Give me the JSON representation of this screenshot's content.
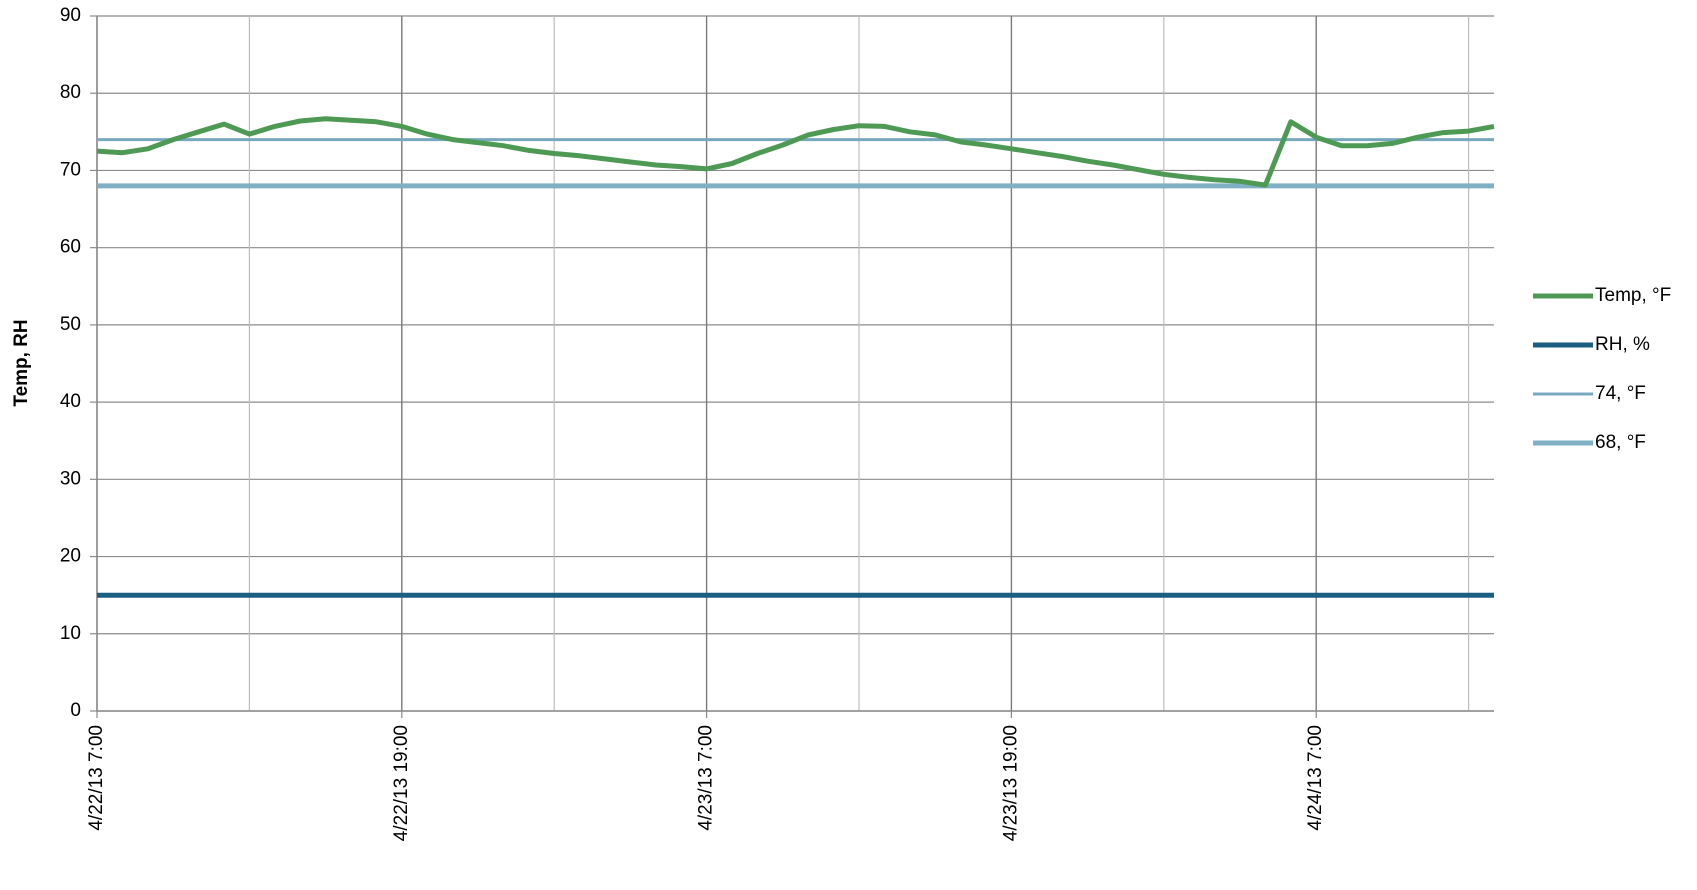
{
  "chart_data": {
    "type": "line",
    "y_label": "Temp, RH",
    "ylim": [
      0,
      90
    ],
    "yticks": [
      0,
      10,
      20,
      30,
      40,
      50,
      60,
      70,
      80,
      90
    ],
    "xlim": [
      "4/22/13 7:00",
      "4/24/13 14:00"
    ],
    "xticks": [
      "4/22/13 7:00",
      "4/22/13 19:00",
      "4/23/13 7:00",
      "4/23/13 19:00",
      "4/24/13 7:00"
    ],
    "grid": true,
    "legend": "right",
    "series": [
      {
        "name": "Temp, °F",
        "color": "#4e9a55",
        "width": 5,
        "x": [
          "4/22/13 7:00",
          "4/22/13 8:00",
          "4/22/13 9:00",
          "4/22/13 10:00",
          "4/22/13 11:00",
          "4/22/13 12:00",
          "4/22/13 13:00",
          "4/22/13 14:00",
          "4/22/13 15:00",
          "4/22/13 16:00",
          "4/22/13 17:00",
          "4/22/13 18:00",
          "4/22/13 19:00",
          "4/22/13 20:00",
          "4/22/13 21:00",
          "4/22/13 22:00",
          "4/22/13 23:00",
          "4/23/13 0:00",
          "4/23/13 1:00",
          "4/23/13 2:00",
          "4/23/13 3:00",
          "4/23/13 4:00",
          "4/23/13 5:00",
          "4/23/13 6:00",
          "4/23/13 7:00",
          "4/23/13 8:00",
          "4/23/13 9:00",
          "4/23/13 10:00",
          "4/23/13 11:00",
          "4/23/13 12:00",
          "4/23/13 13:00",
          "4/23/13 14:00",
          "4/23/13 15:00",
          "4/23/13 16:00",
          "4/23/13 17:00",
          "4/23/13 18:00",
          "4/23/13 19:00",
          "4/23/13 20:00",
          "4/23/13 21:00",
          "4/23/13 22:00",
          "4/23/13 23:00",
          "4/24/13 0:00",
          "4/24/13 1:00",
          "4/24/13 2:00",
          "4/24/13 3:00",
          "4/24/13 4:00",
          "4/24/13 5:00",
          "4/24/13 6:00",
          "4/24/13 7:00",
          "4/24/13 8:00",
          "4/24/13 9:00",
          "4/24/13 10:00",
          "4/24/13 11:00",
          "4/24/13 12:00",
          "4/24/13 13:00",
          "4/24/13 14:00"
        ],
        "values": [
          72.5,
          72.3,
          72.8,
          74,
          75,
          76,
          74.7,
          75.7,
          76.4,
          76.7,
          76.5,
          76.3,
          75.7,
          74.7,
          74,
          73.6,
          73.2,
          72.6,
          72.2,
          71.9,
          71.5,
          71.1,
          70.7,
          70.5,
          70.2,
          70.9,
          72.2,
          73.3,
          74.6,
          75.3,
          75.8,
          75.7,
          75,
          74.6,
          73.7,
          73.3,
          72.8,
          72.3,
          71.8,
          71.2,
          70.7,
          70.1,
          69.5,
          69.1,
          68.8,
          68.6,
          68.1,
          76.3,
          74.3,
          73.2,
          73.2,
          73.5,
          74.3,
          74.9,
          75.1,
          75.7
        ]
      },
      {
        "name": "RH, %",
        "color": "#1a5f82",
        "width": 5,
        "x": [
          "4/22/13 7:00",
          "4/24/13 14:00"
        ],
        "values": [
          15,
          15
        ]
      },
      {
        "name": "74, °F",
        "color": "#78a8bf",
        "width": 3,
        "x": [
          "4/22/13 7:00",
          "4/24/13 14:00"
        ],
        "values": [
          74,
          74
        ]
      },
      {
        "name": "68, °F",
        "color": "#7fb0c4",
        "width": 5,
        "x": [
          "4/22/13 7:00",
          "4/24/13 14:00"
        ],
        "values": [
          68,
          68
        ]
      }
    ]
  }
}
